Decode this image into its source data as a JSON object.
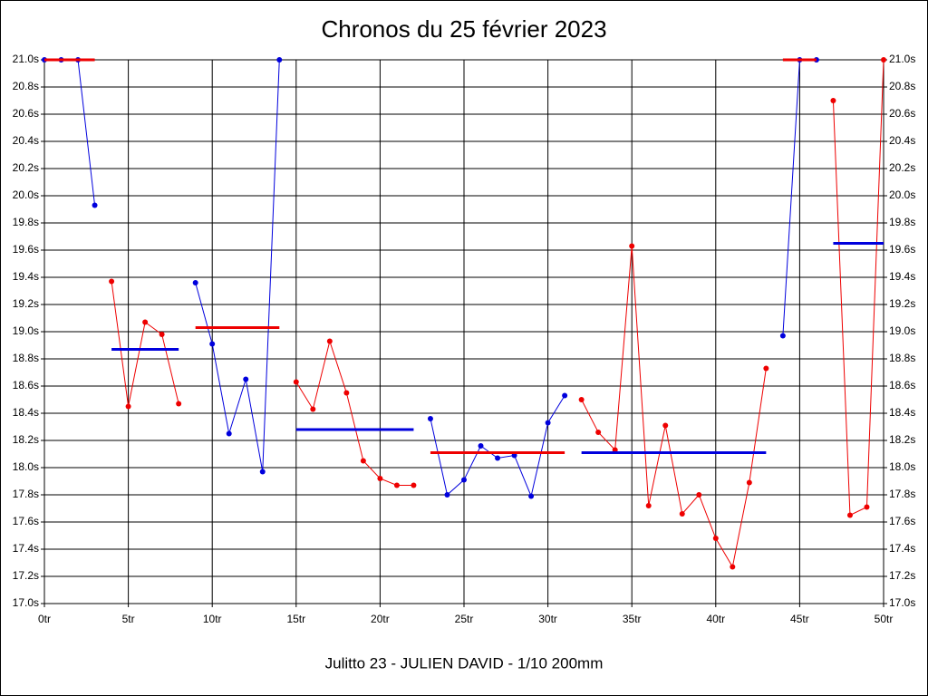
{
  "chart_data": {
    "type": "line",
    "title": "Chronos du 25 février 2023",
    "x_label": "Julitto 23 - JULIEN DAVID - 1/10 200mm",
    "xlim": [
      0,
      50
    ],
    "xticks": [
      {
        "value": 0,
        "label": "0tr"
      },
      {
        "value": 5,
        "label": "5tr"
      },
      {
        "value": 10,
        "label": "10tr"
      },
      {
        "value": 15,
        "label": "15tr"
      },
      {
        "value": 20,
        "label": "20tr"
      },
      {
        "value": 25,
        "label": "25tr"
      },
      {
        "value": 30,
        "label": "30tr"
      },
      {
        "value": 35,
        "label": "35tr"
      },
      {
        "value": 40,
        "label": "40tr"
      },
      {
        "value": 45,
        "label": "45tr"
      },
      {
        "value": 50,
        "label": "50tr"
      }
    ],
    "ylim": [
      17.0,
      21.0
    ],
    "yticks": [
      {
        "value": 17.0,
        "label": "17.0s"
      },
      {
        "value": 17.2,
        "label": "17.2s"
      },
      {
        "value": 17.4,
        "label": "17.4s"
      },
      {
        "value": 17.6,
        "label": "17.6s"
      },
      {
        "value": 17.8,
        "label": "17.8s"
      },
      {
        "value": 18.0,
        "label": "18.0s"
      },
      {
        "value": 18.2,
        "label": "18.2s"
      },
      {
        "value": 18.4,
        "label": "18.4s"
      },
      {
        "value": 18.6,
        "label": "18.6s"
      },
      {
        "value": 18.8,
        "label": "18.8s"
      },
      {
        "value": 19.0,
        "label": "19.0s"
      },
      {
        "value": 19.2,
        "label": "19.2s"
      },
      {
        "value": 19.4,
        "label": "19.4s"
      },
      {
        "value": 19.6,
        "label": "19.6s"
      },
      {
        "value": 19.8,
        "label": "19.8s"
      },
      {
        "value": 20.0,
        "label": "20.0s"
      },
      {
        "value": 20.2,
        "label": "20.2s"
      },
      {
        "value": 20.4,
        "label": "20.4s"
      },
      {
        "value": 20.6,
        "label": "20.6s"
      },
      {
        "value": 20.8,
        "label": "20.8s"
      },
      {
        "value": 21.0,
        "label": "21.0s"
      }
    ],
    "grid": true,
    "series": [
      {
        "color": "#0000dd",
        "x": [
          0,
          1,
          2,
          3
        ],
        "values": [
          21.0,
          21.0,
          21.0,
          19.93
        ]
      },
      {
        "color": "#ee0000",
        "x": [
          4,
          5,
          6,
          7,
          8
        ],
        "values": [
          19.37,
          18.45,
          19.07,
          18.98,
          18.47
        ]
      },
      {
        "color": "#0000dd",
        "x": [
          9,
          10,
          11,
          12,
          13,
          14
        ],
        "values": [
          19.36,
          18.91,
          18.25,
          18.65,
          17.97,
          21.0
        ]
      },
      {
        "color": "#ee0000",
        "x": [
          15,
          16,
          17,
          18,
          19,
          20,
          21,
          22
        ],
        "values": [
          18.63,
          18.43,
          18.93,
          18.55,
          18.05,
          17.92,
          17.87,
          17.87
        ]
      },
      {
        "color": "#0000dd",
        "x": [
          23,
          24,
          25,
          26,
          27,
          28,
          29,
          30,
          31
        ],
        "values": [
          18.36,
          17.8,
          17.91,
          18.16,
          18.07,
          18.09,
          17.79,
          18.33,
          18.53
        ]
      },
      {
        "color": "#ee0000",
        "x": [
          32,
          33,
          34,
          35,
          36,
          37,
          38,
          39,
          40,
          41,
          42,
          43
        ],
        "values": [
          18.5,
          18.26,
          18.13,
          19.63,
          17.72,
          18.31,
          17.66,
          17.8,
          17.48,
          17.27,
          17.89,
          18.73
        ]
      },
      {
        "color": "#0000dd",
        "x": [
          44,
          45,
          46
        ],
        "values": [
          18.97,
          21.0,
          21.0
        ]
      },
      {
        "color": "#ee0000",
        "x": [
          47,
          48,
          49,
          50
        ],
        "values": [
          20.7,
          17.65,
          17.71,
          21.0
        ]
      }
    ],
    "averages": [
      {
        "color": "#ee0000",
        "x": [
          0,
          3
        ],
        "value": 21.0
      },
      {
        "color": "#0000dd",
        "x": [
          4,
          8
        ],
        "value": 18.87
      },
      {
        "color": "#ee0000",
        "x": [
          9,
          14
        ],
        "value": 19.03
      },
      {
        "color": "#0000dd",
        "x": [
          15,
          22
        ],
        "value": 18.28
      },
      {
        "color": "#ee0000",
        "x": [
          23,
          31
        ],
        "value": 18.11
      },
      {
        "color": "#0000dd",
        "x": [
          32,
          43
        ],
        "value": 18.11
      },
      {
        "color": "#ee0000",
        "x": [
          44,
          46
        ],
        "value": 21.0
      },
      {
        "color": "#0000dd",
        "x": [
          47,
          50
        ],
        "value": 19.65
      }
    ]
  }
}
